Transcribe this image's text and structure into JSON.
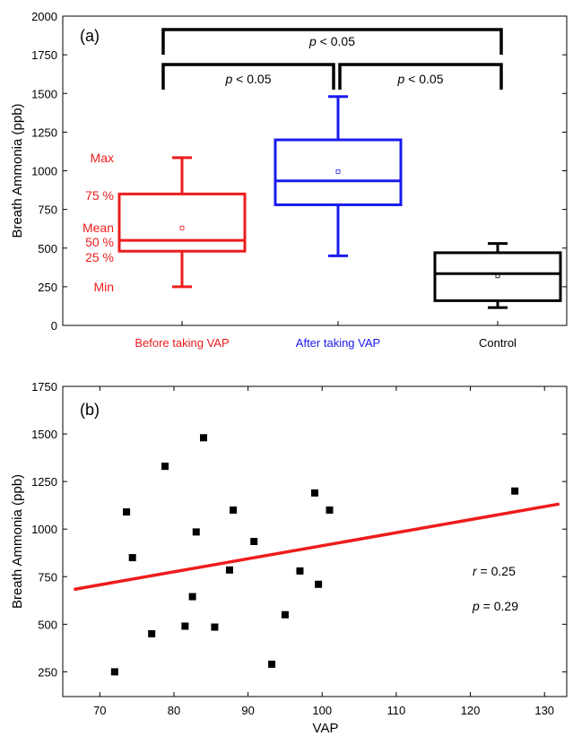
{
  "chart_data": [
    {
      "panel": "(a)",
      "type": "box",
      "ylabel": "Breath Ammonia (ppb)",
      "ylim": [
        0,
        2000
      ],
      "yticks": [
        0,
        250,
        500,
        750,
        1000,
        1250,
        1500,
        1750,
        2000
      ],
      "categories": [
        {
          "label": "Before taking VAP",
          "color": "#ee1c1c",
          "min": 250,
          "q1": 480,
          "median": 550,
          "q3": 850,
          "max": 1085,
          "mean": 630
        },
        {
          "label": "After taking VAP",
          "color": "#1a1aee",
          "min": 450,
          "q1": 780,
          "median": 935,
          "q3": 1200,
          "max": 1480,
          "mean": 995
        },
        {
          "label": "Control",
          "color": "#000000",
          "min": 115,
          "q1": 160,
          "median": 335,
          "q3": 470,
          "max": 530,
          "mean": 320
        }
      ],
      "box_legend": {
        "max": "Max",
        "q3": "75 %",
        "mean": "Mean",
        "median": "50 %",
        "q1": "25 %",
        "min": "Min"
      },
      "significance": [
        {
          "from": 0,
          "to": 2,
          "level": 1,
          "text": "p < 0.05"
        },
        {
          "from": 0,
          "to": 1,
          "level": 0,
          "text": "p < 0.05"
        },
        {
          "from": 1,
          "to": 2,
          "level": 0,
          "text": "p < 0.05"
        }
      ]
    },
    {
      "panel": "(b)",
      "type": "scatter",
      "xlabel": "VAP",
      "ylabel": "Breath Ammonia (ppb)",
      "xlim": [
        65,
        133
      ],
      "ylim": [
        120,
        1750
      ],
      "xticks": [
        70,
        80,
        90,
        100,
        110,
        120,
        130
      ],
      "yticks": [
        250,
        500,
        750,
        1000,
        1250,
        1500,
        1750
      ],
      "points": [
        [
          72,
          250
        ],
        [
          73.6,
          1090
        ],
        [
          74.4,
          850
        ],
        [
          77,
          450
        ],
        [
          78.8,
          1330
        ],
        [
          81.5,
          490
        ],
        [
          82.5,
          645
        ],
        [
          83,
          985
        ],
        [
          84,
          1480
        ],
        [
          85.5,
          485
        ],
        [
          87.5,
          785
        ],
        [
          88,
          1100
        ],
        [
          90.8,
          935
        ],
        [
          93.2,
          290
        ],
        [
          95,
          550
        ],
        [
          97,
          780
        ],
        [
          99,
          1190
        ],
        [
          99.5,
          710
        ],
        [
          101,
          1100
        ],
        [
          126,
          1200
        ]
      ],
      "fit_line": {
        "x": [
          66.5,
          132
        ],
        "y": [
          683,
          1132
        ],
        "color": "#ee1c1c"
      },
      "stats": {
        "r_label": "r",
        "r_value": " = 0.25",
        "p_label": "p",
        "p_value": " = 0.29"
      }
    }
  ]
}
